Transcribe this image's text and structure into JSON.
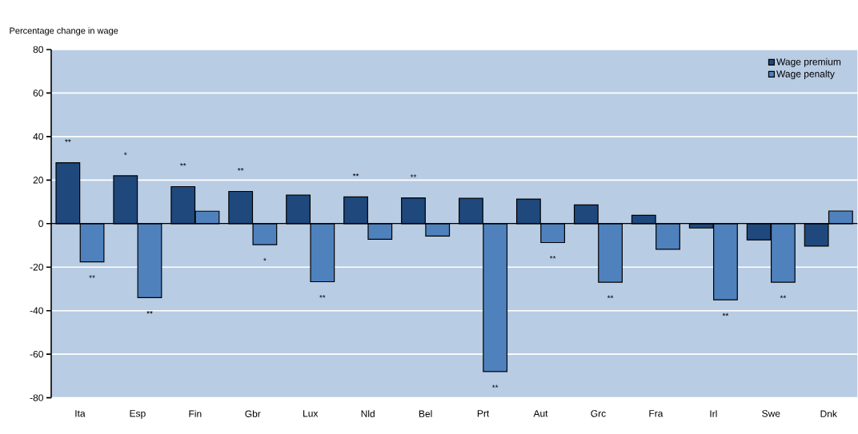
{
  "chart_data": {
    "type": "bar",
    "ylabel": "Percentage change in wage",
    "categories": [
      "Ita",
      "Esp",
      "Fin",
      "Gbr",
      "Lux",
      "Nld",
      "Bel",
      "Prt",
      "Aut",
      "Grc",
      "Fra",
      "Irl",
      "Swe",
      "Dnk"
    ],
    "series": [
      {
        "name": "Wage premium",
        "color": "#1f497d",
        "values": [
          28,
          22,
          17,
          14.8,
          13.1,
          12.3,
          11.8,
          11.6,
          11.3,
          8.6,
          3.8,
          -2,
          -7.5,
          -10.3
        ],
        "value_labels": [
          "**",
          "*",
          "**",
          "**",
          null,
          "**",
          "**",
          null,
          null,
          null,
          null,
          null,
          null,
          null
        ]
      },
      {
        "name": "Wage penalty",
        "color": "#4f81bd",
        "values": [
          -17.6,
          -34,
          5.7,
          -9.7,
          -26.7,
          -7.2,
          -5.7,
          -68,
          -8.7,
          -26.9,
          -11.8,
          -35,
          -26.9,
          5.8
        ],
        "value_labels": [
          "**",
          "**",
          null,
          "*",
          "**",
          null,
          null,
          "**",
          "**",
          "**",
          null,
          "**",
          "**",
          null
        ]
      }
    ],
    "ylim": [
      -80,
      80
    ],
    "yticks": [
      -80,
      -60,
      -40,
      -20,
      0,
      20,
      40,
      60,
      80
    ],
    "grid": "y",
    "legend": "top right"
  }
}
